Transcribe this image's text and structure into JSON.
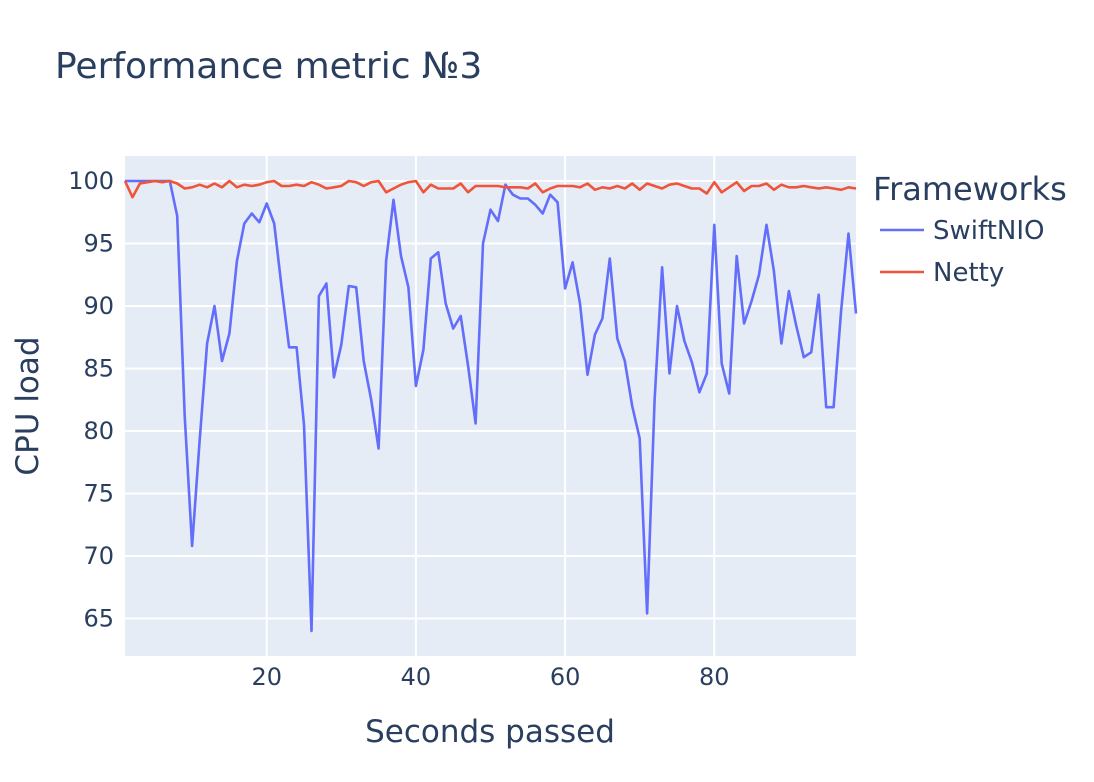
{
  "chart_data": {
    "type": "line",
    "title": "Performance metric №3",
    "xlabel": "Seconds passed",
    "ylabel": "CPU load",
    "xlim": [
      1,
      99
    ],
    "ylim": [
      62,
      102
    ],
    "xticks": [
      20,
      40,
      60,
      80
    ],
    "yticks": [
      65,
      70,
      75,
      80,
      85,
      90,
      95,
      100
    ],
    "grid": true,
    "legend": {
      "title": "Frameworks",
      "position": "right"
    },
    "x": [
      1,
      2,
      3,
      4,
      5,
      6,
      7,
      8,
      9,
      10,
      11,
      12,
      13,
      14,
      15,
      16,
      17,
      18,
      19,
      20,
      21,
      22,
      23,
      24,
      25,
      26,
      27,
      28,
      29,
      30,
      31,
      32,
      33,
      34,
      35,
      36,
      37,
      38,
      39,
      40,
      41,
      42,
      43,
      44,
      45,
      46,
      47,
      48,
      49,
      50,
      51,
      52,
      53,
      54,
      55,
      56,
      57,
      58,
      59,
      60,
      61,
      62,
      63,
      64,
      65,
      66,
      67,
      68,
      69,
      70,
      71,
      72,
      73,
      74,
      75,
      76,
      77,
      78,
      79,
      80,
      81,
      82,
      83,
      84,
      85,
      86,
      87,
      88,
      89,
      90,
      91,
      92,
      93,
      94,
      95,
      96,
      97,
      98,
      99
    ],
    "series": [
      {
        "name": "SwiftNIO",
        "color": "#636efa",
        "values": [
          100,
          100,
          100,
          100,
          100,
          100,
          100,
          97.2,
          81.2,
          70.8,
          79.2,
          87,
          90,
          85.6,
          87.8,
          93.6,
          96.6,
          97.4,
          96.7,
          98.2,
          96.6,
          91.5,
          86.7,
          86.7,
          80.5,
          64,
          90.8,
          91.8,
          84.3,
          86.9,
          91.6,
          91.5,
          85.6,
          82.5,
          78.6,
          93.6,
          98.5,
          94,
          91.5,
          83.6,
          86.5,
          93.8,
          94.3,
          90.2,
          88.2,
          89.2,
          85.2,
          80.6,
          95,
          97.7,
          96.8,
          99.7,
          98.9,
          98.6,
          98.6,
          98.1,
          97.4,
          98.9,
          98.3,
          91.4,
          93.5,
          90.2,
          84.5,
          87.7,
          89,
          93.8,
          87.4,
          85.6,
          82,
          79.4,
          65.4,
          82.5,
          93.1,
          84.6,
          90,
          87.2,
          85.5,
          83.1,
          84.6,
          96.5,
          85.4,
          83,
          94,
          88.6,
          90.4,
          92.5,
          96.5,
          92.8,
          87,
          91.2,
          88.4,
          85.9,
          86.3,
          90.9,
          81.9,
          81.9,
          89.6,
          95.8,
          89.4
        ]
      },
      {
        "name": "Netty",
        "color": "#ef553b",
        "values": [
          100,
          98.7,
          99.8,
          99.9,
          100,
          99.9,
          100,
          99.8,
          99.4,
          99.5,
          99.7,
          99.5,
          99.8,
          99.5,
          100,
          99.5,
          99.7,
          99.6,
          99.7,
          99.9,
          100,
          99.6,
          99.6,
          99.7,
          99.6,
          99.9,
          99.7,
          99.4,
          99.5,
          99.6,
          100,
          99.9,
          99.6,
          99.9,
          100,
          99.1,
          99.4,
          99.7,
          99.9,
          100,
          99.1,
          99.7,
          99.4,
          99.4,
          99.4,
          99.8,
          99.1,
          99.6,
          99.6,
          99.6,
          99.6,
          99.5,
          99.5,
          99.5,
          99.4,
          99.8,
          99.1,
          99.4,
          99.6,
          99.6,
          99.6,
          99.5,
          99.8,
          99.3,
          99.5,
          99.4,
          99.6,
          99.4,
          99.8,
          99.3,
          99.8,
          99.6,
          99.4,
          99.7,
          99.8,
          99.6,
          99.4,
          99.4,
          99,
          99.9,
          99.1,
          99.5,
          99.9,
          99.2,
          99.6,
          99.6,
          99.8,
          99.3,
          99.7,
          99.5,
          99.5,
          99.6,
          99.5,
          99.4,
          99.5,
          99.4,
          99.3,
          99.5,
          99.4
        ]
      }
    ]
  }
}
